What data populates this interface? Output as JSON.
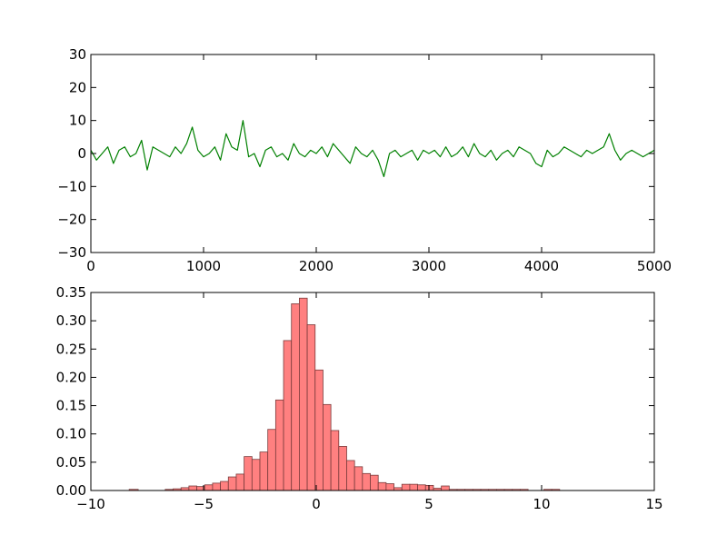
{
  "chart_data": [
    {
      "type": "line",
      "title": "",
      "xlabel": "",
      "ylabel": "",
      "xlim": [
        0,
        5000
      ],
      "ylim": [
        -30,
        30
      ],
      "xticks": [
        0,
        1000,
        2000,
        3000,
        4000,
        5000
      ],
      "yticks": [
        -30,
        -20,
        -10,
        0,
        10,
        20,
        30
      ],
      "xtick_labels": [
        "0",
        "1000",
        "2000",
        "3000",
        "4000",
        "5000"
      ],
      "ytick_labels": [
        "−30",
        "−20",
        "−10",
        "0",
        "10",
        "20",
        "30"
      ],
      "grid": false,
      "series": [
        {
          "color": "#008000",
          "x": [
            0,
            50,
            100,
            150,
            200,
            250,
            300,
            350,
            400,
            450,
            500,
            550,
            600,
            650,
            700,
            750,
            800,
            850,
            900,
            950,
            1000,
            1050,
            1100,
            1150,
            1200,
            1250,
            1300,
            1350,
            1400,
            1450,
            1500,
            1550,
            1600,
            1650,
            1700,
            1750,
            1800,
            1850,
            1900,
            1950,
            2000,
            2050,
            2100,
            2150,
            2200,
            2250,
            2300,
            2350,
            2400,
            2450,
            2500,
            2550,
            2600,
            2650,
            2700,
            2750,
            2800,
            2850,
            2900,
            2950,
            3000,
            3050,
            3100,
            3150,
            3200,
            3250,
            3300,
            3350,
            3400,
            3450,
            3500,
            3550,
            3600,
            3650,
            3700,
            3750,
            3800,
            3850,
            3900,
            3950,
            4000,
            4050,
            4100,
            4150,
            4200,
            4250,
            4300,
            4350,
            4400,
            4450,
            4500,
            4550,
            4600,
            4650,
            4700,
            4750,
            4800,
            4850,
            4900,
            4950,
            5000
          ],
          "y": [
            1,
            -2,
            0,
            2,
            -3,
            1,
            2,
            -1,
            0,
            4,
            -5,
            2,
            1,
            0,
            -1,
            2,
            0,
            3,
            8,
            1,
            -1,
            0,
            2,
            -2,
            6,
            2,
            1,
            10,
            -1,
            0,
            -4,
            1,
            2,
            -1,
            0,
            -2,
            3,
            0,
            -1,
            1,
            0,
            2,
            -1,
            3,
            1,
            -1,
            -3,
            2,
            0,
            -1,
            1,
            -2,
            -7,
            0,
            1,
            -1,
            0,
            1,
            -2,
            1,
            0,
            1,
            -1,
            2,
            -1,
            0,
            2,
            -1,
            3,
            0,
            -1,
            1,
            -2,
            0,
            1,
            -1,
            2,
            1,
            0,
            -3,
            -4,
            1,
            -1,
            0,
            2,
            1,
            0,
            -1,
            1,
            0,
            1,
            2,
            6,
            1,
            -2,
            0,
            1,
            0,
            -1,
            0,
            1
          ]
        }
      ]
    },
    {
      "type": "bar",
      "title": "",
      "xlabel": "",
      "ylabel": "",
      "xlim": [
        -10,
        15
      ],
      "ylim": [
        0,
        0.35
      ],
      "xticks": [
        -10,
        -5,
        0,
        5,
        10,
        15
      ],
      "yticks": [
        0,
        0.05,
        0.1,
        0.15,
        0.2,
        0.25,
        0.3,
        0.35
      ],
      "xtick_labels": [
        "−10",
        "−5",
        "0",
        "5",
        "10",
        "15"
      ],
      "ytick_labels": [
        "0.00",
        "0.05",
        "0.10",
        "0.15",
        "0.20",
        "0.25",
        "0.30",
        "0.35"
      ],
      "grid": false,
      "color": "#ff8080",
      "bins": [
        {
          "x0": -8.3,
          "x1": -7.9,
          "value": 0.002
        },
        {
          "x0": -6.7,
          "x1": -6.35,
          "value": 0.002
        },
        {
          "x0": -6.35,
          "x1": -6.0,
          "value": 0.003
        },
        {
          "x0": -6.0,
          "x1": -5.65,
          "value": 0.005
        },
        {
          "x0": -5.65,
          "x1": -5.3,
          "value": 0.008
        },
        {
          "x0": -5.3,
          "x1": -4.95,
          "value": 0.007
        },
        {
          "x0": -4.95,
          "x1": -4.6,
          "value": 0.01
        },
        {
          "x0": -4.6,
          "x1": -4.25,
          "value": 0.013
        },
        {
          "x0": -4.25,
          "x1": -3.9,
          "value": 0.016
        },
        {
          "x0": -3.9,
          "x1": -3.55,
          "value": 0.024
        },
        {
          "x0": -3.55,
          "x1": -3.2,
          "value": 0.029
        },
        {
          "x0": -3.2,
          "x1": -2.85,
          "value": 0.06
        },
        {
          "x0": -2.85,
          "x1": -2.5,
          "value": 0.055
        },
        {
          "x0": -2.5,
          "x1": -2.15,
          "value": 0.068
        },
        {
          "x0": -2.15,
          "x1": -1.8,
          "value": 0.108
        },
        {
          "x0": -1.8,
          "x1": -1.45,
          "value": 0.16
        },
        {
          "x0": -1.45,
          "x1": -1.1,
          "value": 0.265
        },
        {
          "x0": -1.1,
          "x1": -0.75,
          "value": 0.33
        },
        {
          "x0": -0.75,
          "x1": -0.4,
          "value": 0.34
        },
        {
          "x0": -0.4,
          "x1": -0.05,
          "value": 0.293
        },
        {
          "x0": -0.05,
          "x1": 0.3,
          "value": 0.213
        },
        {
          "x0": 0.3,
          "x1": 0.65,
          "value": 0.152
        },
        {
          "x0": 0.65,
          "x1": 1.0,
          "value": 0.106
        },
        {
          "x0": 1.0,
          "x1": 1.35,
          "value": 0.078
        },
        {
          "x0": 1.35,
          "x1": 1.7,
          "value": 0.053
        },
        {
          "x0": 1.7,
          "x1": 2.05,
          "value": 0.042
        },
        {
          "x0": 2.05,
          "x1": 2.4,
          "value": 0.03
        },
        {
          "x0": 2.4,
          "x1": 2.75,
          "value": 0.027
        },
        {
          "x0": 2.75,
          "x1": 3.1,
          "value": 0.014
        },
        {
          "x0": 3.1,
          "x1": 3.45,
          "value": 0.012
        },
        {
          "x0": 3.45,
          "x1": 3.8,
          "value": 0.005
        },
        {
          "x0": 3.8,
          "x1": 4.15,
          "value": 0.011
        },
        {
          "x0": 4.15,
          "x1": 4.5,
          "value": 0.011
        },
        {
          "x0": 4.5,
          "x1": 4.85,
          "value": 0.01
        },
        {
          "x0": 4.85,
          "x1": 5.2,
          "value": 0.009
        },
        {
          "x0": 5.2,
          "x1": 5.55,
          "value": 0.004
        },
        {
          "x0": 5.55,
          "x1": 5.9,
          "value": 0.008
        },
        {
          "x0": 5.9,
          "x1": 6.25,
          "value": 0.002
        },
        {
          "x0": 6.25,
          "x1": 6.6,
          "value": 0.002
        },
        {
          "x0": 6.6,
          "x1": 6.95,
          "value": 0.002
        },
        {
          "x0": 6.95,
          "x1": 7.3,
          "value": 0.002
        },
        {
          "x0": 7.3,
          "x1": 7.65,
          "value": 0.002
        },
        {
          "x0": 7.65,
          "x1": 8.0,
          "value": 0.002
        },
        {
          "x0": 8.0,
          "x1": 8.35,
          "value": 0.002
        },
        {
          "x0": 8.35,
          "x1": 8.7,
          "value": 0.002
        },
        {
          "x0": 8.7,
          "x1": 9.05,
          "value": 0.002
        },
        {
          "x0": 9.05,
          "x1": 9.4,
          "value": 0.002
        },
        {
          "x0": 10.1,
          "x1": 10.45,
          "value": 0.002
        },
        {
          "x0": 10.45,
          "x1": 10.8,
          "value": 0.002
        }
      ]
    }
  ]
}
